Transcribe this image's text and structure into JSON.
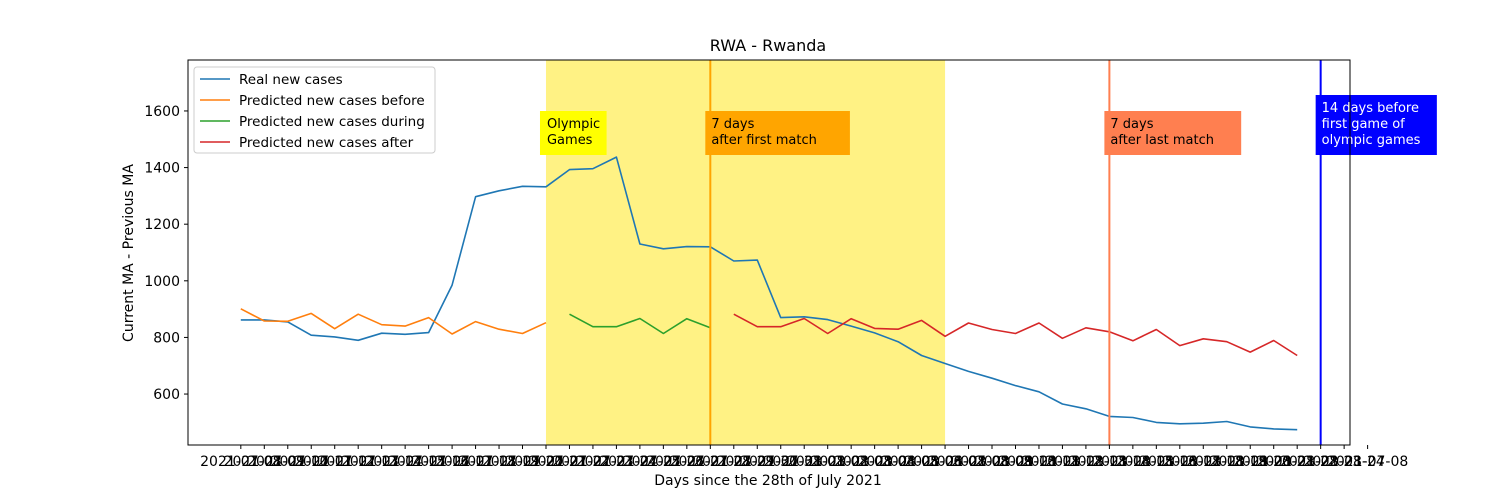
{
  "chart_data": {
    "type": "line",
    "title": "RWA - Rwanda",
    "xlabel": "Days since the 28th of July 2021",
    "ylabel": "Current MA - Previous MA",
    "ylim": [
      420,
      1780
    ],
    "xlim": [
      -2.25,
      47.25
    ],
    "yticks": [
      600,
      800,
      1000,
      1200,
      1400,
      1600
    ],
    "grid": false,
    "legend_position": "top-left",
    "xtick_labels": [
      "2021-07-08",
      "2021-07-09",
      "2021-07-10",
      "2021-07-11",
      "2021-07-12",
      "2021-07-13",
      "2021-07-14",
      "2021-07-15",
      "2021-07-16",
      "2021-07-17",
      "2021-07-18",
      "2021-07-19",
      "2021-07-20",
      "2021-07-21",
      "2021-07-22",
      "2021-07-23",
      "2021-07-24",
      "2021-07-25",
      "2021-07-26",
      "2021-07-27",
      "2021-07-28",
      "2021-07-29",
      "2021-07-30",
      "2021-07-31",
      "2021-08-01",
      "2021-08-02",
      "2021-08-03",
      "2021-08-04",
      "2021-08-05",
      "2021-08-06",
      "2021-08-07",
      "2021-08-08",
      "2021-08-09",
      "2021-08-10",
      "2021-08-11",
      "2021-08-12",
      "2021-08-13",
      "2021-08-14",
      "2021-08-15",
      "2021-08-16",
      "2021-08-17",
      "2021-08-18",
      "2021-08-19",
      "2021-08-20",
      "2021-08-21",
      "2021-08-22",
      "2021-08-23",
      "2021-08-24",
      "2021-07-08"
    ],
    "series": [
      {
        "name": "Real new cases",
        "color": "#1f77b4",
        "points": [
          [
            0,
            862
          ],
          [
            1,
            862
          ],
          [
            2,
            855
          ],
          [
            3,
            808
          ],
          [
            4,
            802
          ],
          [
            5,
            790
          ],
          [
            6,
            815
          ],
          [
            7,
            811
          ],
          [
            8,
            817
          ],
          [
            9,
            985
          ],
          [
            10,
            1297
          ],
          [
            11,
            1318
          ],
          [
            12,
            1334
          ],
          [
            13,
            1332
          ],
          [
            14,
            1393
          ],
          [
            15,
            1396
          ],
          [
            16,
            1437
          ],
          [
            17,
            1130
          ],
          [
            18,
            1113
          ],
          [
            19,
            1121
          ],
          [
            20,
            1120
          ],
          [
            21,
            1070
          ],
          [
            22,
            1073
          ],
          [
            23,
            870
          ],
          [
            24,
            873
          ],
          [
            25,
            863
          ],
          [
            26,
            840
          ],
          [
            27,
            816
          ],
          [
            28,
            785
          ],
          [
            29,
            736
          ],
          [
            30,
            708
          ],
          [
            31,
            680
          ],
          [
            32,
            656
          ],
          [
            33,
            630
          ],
          [
            34,
            608
          ],
          [
            35,
            565
          ],
          [
            36,
            548
          ],
          [
            37,
            521
          ],
          [
            38,
            517
          ],
          [
            39,
            500
          ],
          [
            40,
            495
          ],
          [
            41,
            497
          ],
          [
            42,
            503
          ],
          [
            43,
            484
          ],
          [
            44,
            477
          ],
          [
            45,
            474
          ]
        ]
      },
      {
        "name": "Predicted new cases before",
        "color": "#ff7f0e",
        "points": [
          [
            0,
            901
          ],
          [
            1,
            858
          ],
          [
            2,
            857
          ],
          [
            3,
            885
          ],
          [
            4,
            831
          ],
          [
            5,
            882
          ],
          [
            6,
            845
          ],
          [
            7,
            840
          ],
          [
            8,
            870
          ],
          [
            9,
            812
          ],
          [
            10,
            856
          ],
          [
            11,
            829
          ],
          [
            12,
            814
          ],
          [
            13,
            852
          ]
        ]
      },
      {
        "name": "Predicted new cases during",
        "color": "#2ca02c",
        "points": [
          [
            14,
            882
          ],
          [
            15,
            838
          ],
          [
            16,
            838
          ],
          [
            17,
            867
          ],
          [
            18,
            814
          ],
          [
            19,
            866
          ],
          [
            20,
            834
          ]
        ]
      },
      {
        "name": "Predicted new cases after",
        "color": "#d62728",
        "points": [
          [
            21,
            882
          ],
          [
            22,
            838
          ],
          [
            23,
            838
          ],
          [
            24,
            867
          ],
          [
            25,
            814
          ],
          [
            26,
            866
          ],
          [
            27,
            832
          ],
          [
            28,
            829
          ],
          [
            29,
            860
          ],
          [
            30,
            804
          ],
          [
            31,
            851
          ],
          [
            32,
            828
          ],
          [
            33,
            814
          ],
          [
            34,
            851
          ],
          [
            35,
            797
          ],
          [
            36,
            834
          ],
          [
            37,
            820
          ],
          [
            38,
            788
          ],
          [
            39,
            828
          ],
          [
            40,
            771
          ],
          [
            41,
            795
          ],
          [
            42,
            785
          ],
          [
            43,
            748
          ],
          [
            44,
            789
          ],
          [
            45,
            736
          ]
        ]
      }
    ],
    "shaded_region": {
      "from": 13,
      "to": 30,
      "color": "#fff06e"
    },
    "vlines": [
      {
        "x": 20,
        "color": "#ffa500",
        "label": [
          "7 days",
          "after first match"
        ],
        "box_color": "#ffa500",
        "text_color": "#000000"
      },
      {
        "x": 37,
        "color": "#ff7f50",
        "label": [
          "7 days",
          "after last match"
        ],
        "box_color": "#ff7f50",
        "text_color": "#000000"
      },
      {
        "x": 46,
        "color": "#0000ff",
        "label": [
          "14 days before",
          "first game of",
          "olympic games"
        ],
        "box_color": "#0000ff",
        "text_color": "#ffffff"
      }
    ],
    "annotations": [
      {
        "x": 13,
        "label": [
          "Olympic",
          "Games"
        ],
        "box_color": "#ffff00",
        "text_color": "#000000"
      }
    ]
  }
}
